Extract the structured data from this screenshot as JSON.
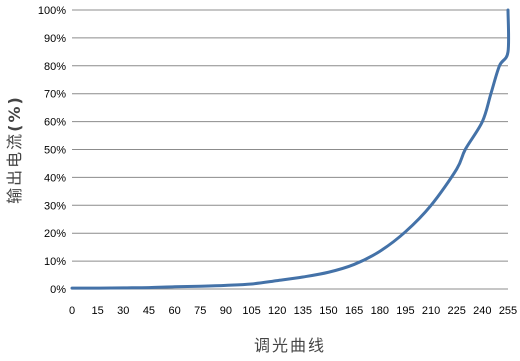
{
  "chart_data": {
    "type": "line",
    "title": "",
    "xlabel": "调光曲线",
    "ylabel": "输出电流",
    "ylabel_unit": "(%)",
    "x": [
      0,
      15,
      30,
      45,
      60,
      75,
      90,
      105,
      120,
      135,
      150,
      165,
      180,
      195,
      210,
      225,
      240,
      255
    ],
    "x_ticks": [
      "0",
      "15",
      "30",
      "45",
      "60",
      "75",
      "90",
      "105",
      "120",
      "135",
      "150",
      "165",
      "180",
      "195",
      "210",
      "225",
      "240",
      "255"
    ],
    "y_ticks": [
      "0%",
      "10%",
      "20%",
      "30%",
      "40%",
      "50%",
      "60%",
      "70%",
      "80%",
      "90%",
      "100%"
    ],
    "xlim": [
      0,
      255
    ],
    "ylim": [
      0,
      100
    ],
    "grid": true,
    "series": [
      {
        "color": "#4472a8",
        "values": [
          0.3,
          0.3,
          0.4,
          0.5,
          0.8,
          1.0,
          1.3,
          1.8,
          3.0,
          4.3,
          6.0,
          8.8,
          13.5,
          20.5,
          30.0,
          43.0,
          60.0,
          85.0
        ]
      }
    ],
    "extra_points": [
      [
        230,
        50
      ],
      [
        245,
        70
      ],
      [
        250,
        80
      ],
      [
        255,
        100
      ]
    ]
  }
}
